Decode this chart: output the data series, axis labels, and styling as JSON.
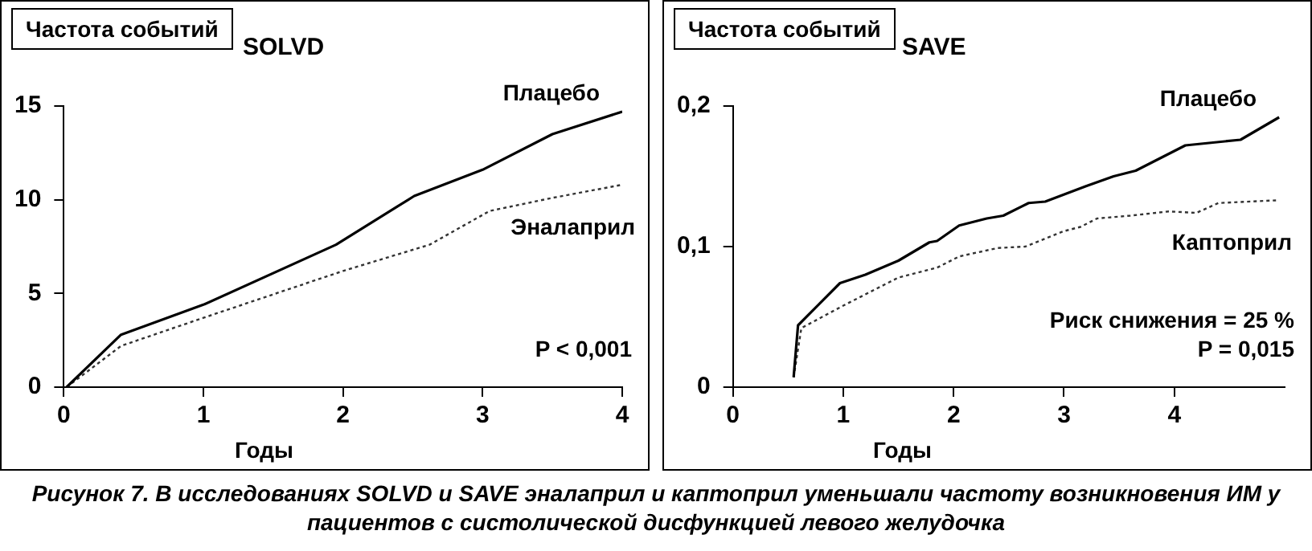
{
  "chart_data": [
    {
      "type": "line",
      "title": "SOLVD",
      "ylabel": "Частота событий",
      "xlabel": "Годы",
      "xlim": [
        0,
        4
      ],
      "xticks": [
        0,
        1,
        2,
        3,
        4
      ],
      "ylim": [
        0,
        15
      ],
      "yticks": [
        0,
        5,
        10,
        15
      ],
      "series": [
        {
          "name": "Плацебо",
          "color": "#000000",
          "line_style": "solid",
          "x": [
            0.02,
            0.41,
            1.0,
            1.95,
            2.51,
            3.0,
            3.5,
            4.0
          ],
          "values": [
            0,
            2.8,
            4.4,
            7.6,
            10.2,
            11.6,
            13.5,
            14.7
          ]
        },
        {
          "name": "Эналаприл",
          "color": "#333333",
          "line_style": "dotted",
          "x": [
            0.02,
            0.41,
            1.0,
            2.0,
            2.62,
            3.05,
            3.5,
            4.0
          ],
          "values": [
            0,
            2.2,
            3.7,
            6.2,
            7.6,
            9.4,
            10.1,
            10.8
          ]
        }
      ],
      "annotations": [
        "P < 0,001"
      ]
    },
    {
      "type": "line",
      "title": "SAVE",
      "ylabel": "Частота событий",
      "xlabel": "Годы",
      "xlim": [
        0,
        5
      ],
      "xticks": [
        0,
        1,
        2,
        3,
        4
      ],
      "ylim": [
        0,
        0.2
      ],
      "yticks": [
        {
          "value": 0,
          "label": "0"
        },
        {
          "value": 0.1,
          "label": "0,1"
        },
        {
          "value": 0.2,
          "label": "0,2"
        }
      ],
      "series": [
        {
          "name": "Плацебо",
          "color": "#000000",
          "line_style": "solid",
          "x": [
            0.55,
            0.59,
            0.97,
            1.2,
            1.5,
            1.78,
            1.85,
            2.05,
            2.3,
            2.45,
            2.68,
            2.83,
            3.2,
            3.45,
            3.65,
            4.05,
            4.1,
            4.6,
            4.95
          ],
          "values": [
            0.007,
            0.044,
            0.074,
            0.08,
            0.09,
            0.103,
            0.104,
            0.115,
            0.12,
            0.122,
            0.131,
            0.132,
            0.143,
            0.15,
            0.154,
            0.17,
            0.172,
            0.176,
            0.192
          ]
        },
        {
          "name": "Каптоприл",
          "color": "#333333",
          "line_style": "dotted",
          "x": [
            0.55,
            0.62,
            1.0,
            1.5,
            1.85,
            2.05,
            2.4,
            2.65,
            3.0,
            3.15,
            3.3,
            3.6,
            3.95,
            4.2,
            4.4,
            4.95
          ],
          "values": [
            0.007,
            0.042,
            0.058,
            0.078,
            0.085,
            0.093,
            0.099,
            0.1,
            0.111,
            0.114,
            0.12,
            0.122,
            0.125,
            0.124,
            0.131,
            0.133
          ]
        }
      ],
      "annotations": [
        "Риск снижения = 25 %",
        "P = 0,015",
        "Рисунок 7. В исследованиях SOLVD и SAVE эналаприл и каптоприл уменьшали частоту возникновения ИМ у пациентов с систолической дисфункцией левого желудочка"
      ]
    }
  ]
}
